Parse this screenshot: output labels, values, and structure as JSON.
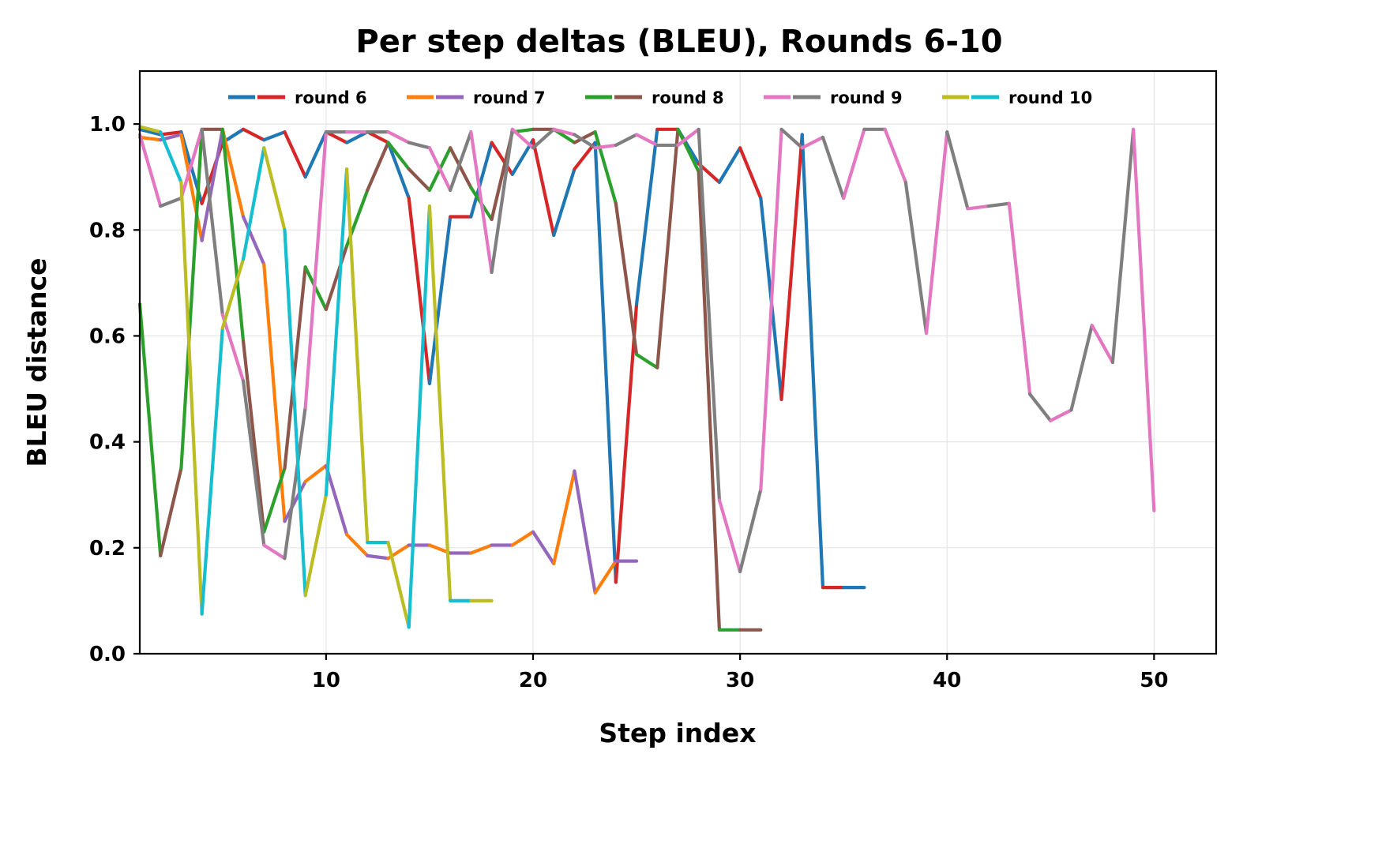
{
  "chart_data": {
    "type": "line",
    "title": "Per step deltas (BLEU), Rounds 6-10",
    "xlabel": "Step index",
    "ylabel": "BLEU distance",
    "xlim": [
      1,
      53
    ],
    "ylim": [
      0.0,
      1.1
    ],
    "xticks": [
      10,
      20,
      30,
      40,
      50
    ],
    "yticks": [
      0.0,
      0.2,
      0.4,
      0.6,
      0.8,
      1.0
    ],
    "xtick_labels": [
      "10",
      "20",
      "30",
      "40",
      "50"
    ],
    "ytick_labels": [
      "0.0",
      "0.2",
      "0.4",
      "0.6",
      "0.8",
      "1.0"
    ],
    "grid": true,
    "legend_position": "upper center, inside, single row",
    "note": "Each round's line alternates between two colors segment by segment",
    "series": [
      {
        "name": "round 6",
        "colors": [
          "#1f77b4",
          "#d62728"
        ],
        "x": [
          1,
          2,
          3,
          4,
          5,
          6,
          7,
          8,
          9,
          10,
          11,
          12,
          13,
          14,
          15,
          16,
          17,
          18,
          19,
          20,
          21,
          22,
          23,
          24,
          25,
          26,
          27,
          28,
          29,
          30,
          31,
          32,
          33,
          34,
          35,
          36
        ],
        "values": [
          0.99,
          0.98,
          0.985,
          0.85,
          0.965,
          0.99,
          0.97,
          0.985,
          0.9,
          0.985,
          0.965,
          0.985,
          0.965,
          0.86,
          0.51,
          0.825,
          0.825,
          0.965,
          0.905,
          0.97,
          0.79,
          0.915,
          0.965,
          0.135,
          0.66,
          0.99,
          0.99,
          0.925,
          0.89,
          0.955,
          0.86,
          0.48,
          0.98,
          0.125,
          0.125,
          0.125
        ]
      },
      {
        "name": "round 7",
        "colors": [
          "#ff7f0e",
          "#9467bd"
        ],
        "x": [
          1,
          2,
          3,
          4,
          5,
          6,
          7,
          8,
          9,
          10,
          11,
          12,
          13,
          14,
          15,
          16,
          17,
          18,
          19,
          20,
          21,
          22,
          23,
          24,
          25
        ],
        "values": [
          0.975,
          0.97,
          0.98,
          0.78,
          0.99,
          0.825,
          0.735,
          0.25,
          0.325,
          0.355,
          0.225,
          0.185,
          0.18,
          0.205,
          0.205,
          0.19,
          0.19,
          0.205,
          0.205,
          0.23,
          0.17,
          0.345,
          0.115,
          0.175,
          0.175
        ]
      },
      {
        "name": "round 8",
        "colors": [
          "#2ca02c",
          "#8c564b"
        ],
        "x": [
          1,
          2,
          3,
          4,
          5,
          6,
          7,
          8,
          9,
          10,
          11,
          12,
          13,
          14,
          15,
          16,
          17,
          18,
          19,
          20,
          21,
          22,
          23,
          24,
          25,
          26,
          27,
          28,
          29,
          30,
          31
        ],
        "values": [
          0.66,
          0.185,
          0.35,
          0.99,
          0.99,
          0.59,
          0.23,
          0.35,
          0.73,
          0.65,
          0.77,
          0.875,
          0.965,
          0.915,
          0.875,
          0.955,
          0.88,
          0.82,
          0.985,
          0.99,
          0.99,
          0.965,
          0.985,
          0.85,
          0.565,
          0.54,
          0.99,
          0.91,
          0.045,
          0.045,
          0.045
        ]
      },
      {
        "name": "round 9",
        "colors": [
          "#e377c2",
          "#7f7f7f"
        ],
        "x": [
          1,
          2,
          3,
          4,
          5,
          6,
          7,
          8,
          9,
          10,
          11,
          12,
          13,
          14,
          15,
          16,
          17,
          18,
          19,
          20,
          21,
          22,
          23,
          24,
          25,
          26,
          27,
          28,
          29,
          30,
          31,
          32,
          33,
          34,
          35,
          36,
          37,
          38,
          39,
          40,
          41,
          42,
          43,
          44,
          45,
          46,
          47,
          48,
          49,
          50
        ],
        "values": [
          0.98,
          0.845,
          0.86,
          0.99,
          0.64,
          0.515,
          0.205,
          0.18,
          0.465,
          0.985,
          0.985,
          0.985,
          0.985,
          0.965,
          0.955,
          0.875,
          0.985,
          0.72,
          0.99,
          0.955,
          0.99,
          0.98,
          0.955,
          0.96,
          0.98,
          0.96,
          0.96,
          0.99,
          0.29,
          0.155,
          0.31,
          0.99,
          0.955,
          0.975,
          0.86,
          0.99,
          0.99,
          0.89,
          0.605,
          0.985,
          0.84,
          0.845,
          0.85,
          0.49,
          0.44,
          0.46,
          0.62,
          0.55,
          0.99,
          0.27
        ]
      },
      {
        "name": "round 10",
        "colors": [
          "#bcbd22",
          "#17becf"
        ],
        "x": [
          1,
          2,
          3,
          4,
          5,
          6,
          7,
          8,
          9,
          10,
          11,
          12,
          13,
          14,
          15,
          16,
          17,
          18
        ],
        "values": [
          0.995,
          0.985,
          0.89,
          0.075,
          0.615,
          0.745,
          0.955,
          0.8,
          0.11,
          0.3,
          0.915,
          0.21,
          0.21,
          0.05,
          0.845,
          0.1,
          0.1,
          0.1
        ]
      }
    ]
  }
}
